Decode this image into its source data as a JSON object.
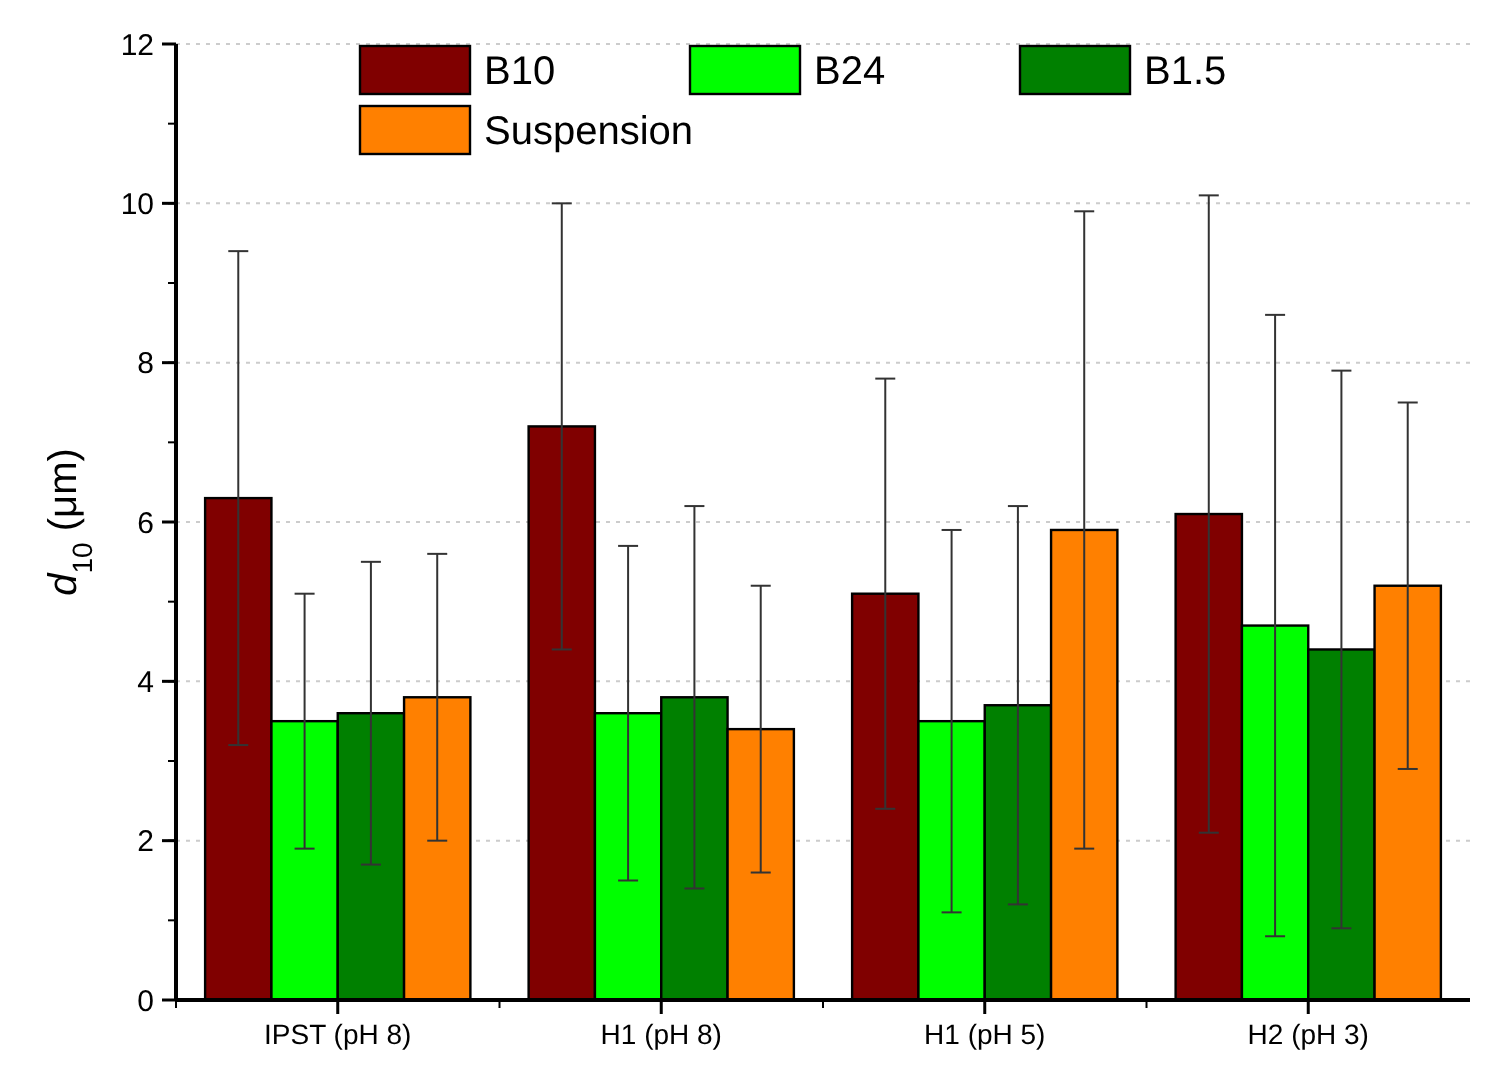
{
  "chart_data": {
    "type": "bar",
    "ylabel": "d$_{10}$ (μm)",
    "categories": [
      "IPST (pH 8)",
      "H1 (pH 8)",
      "H1 (pH 5)",
      "H2 (pH 3)"
    ],
    "series": [
      {
        "name": "B10",
        "color": "#800000",
        "values": [
          6.3,
          7.2,
          5.1,
          6.1
        ],
        "errors": [
          3.1,
          2.8,
          2.7,
          4.0
        ]
      },
      {
        "name": "B24",
        "color": "#00ff00",
        "values": [
          3.5,
          3.6,
          3.5,
          4.7
        ],
        "errors": [
          1.6,
          2.1,
          2.4,
          3.9
        ]
      },
      {
        "name": "B1.5",
        "color": "#008000",
        "values": [
          3.6,
          3.8,
          3.7,
          4.4
        ],
        "errors": [
          1.9,
          2.4,
          2.5,
          3.5
        ]
      },
      {
        "name": "Suspension",
        "color": "#ff8000",
        "values": [
          3.8,
          3.4,
          5.9,
          5.2
        ],
        "errors": [
          1.8,
          1.8,
          4.0,
          2.3
        ]
      }
    ],
    "ylim": [
      0,
      12
    ],
    "yticks": [
      0,
      2,
      4,
      6,
      8,
      10,
      12
    ],
    "grid": "y",
    "legend": "top"
  }
}
